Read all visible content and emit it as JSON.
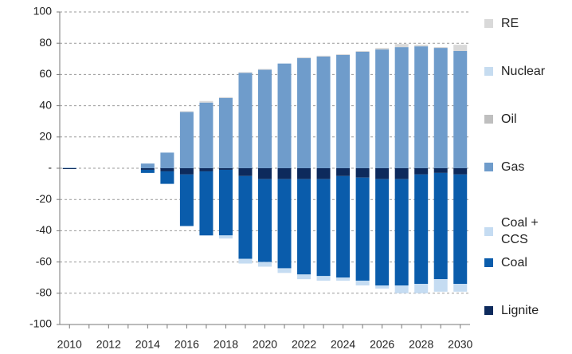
{
  "chart_data": {
    "type": "bar",
    "stacked": true,
    "categories": [
      "2010",
      null,
      "2012",
      null,
      "2014",
      null,
      "2016",
      null,
      "2018",
      null,
      "2020",
      null,
      "2022",
      null,
      "2024",
      null,
      "2026",
      null,
      "2028",
      null,
      "2030"
    ],
    "series": [
      {
        "name": "RE",
        "color": "#d9d9d9",
        "values": [
          0,
          0,
          0,
          0,
          0,
          0,
          0.5,
          1,
          0.5,
          0.5,
          0.5,
          0,
          0.5,
          0.5,
          0.5,
          0.5,
          1,
          2,
          1,
          0.5,
          4
        ]
      },
      {
        "name": "Nuclear",
        "color": "#c6dcf0",
        "values": [
          0,
          0,
          0,
          0,
          0,
          0,
          0,
          0,
          0,
          0,
          0,
          0,
          0,
          0,
          0,
          0,
          0,
          0,
          0,
          0,
          0
        ]
      },
      {
        "name": "Oil",
        "color": "#bfbfbf",
        "values": [
          0,
          0,
          0,
          0,
          0,
          0,
          0,
          0,
          0,
          0,
          0,
          0,
          0,
          0,
          0,
          0,
          0,
          0,
          0,
          0,
          0
        ]
      },
      {
        "name": "Gas",
        "color": "#6f9ccb",
        "values": [
          0.3,
          0,
          0,
          0,
          3,
          10,
          36,
          42,
          45,
          61,
          63,
          67,
          70.5,
          71.5,
          72.5,
          74.5,
          76,
          77.5,
          78,
          77,
          75
        ]
      },
      {
        "name": "Coal + CCS",
        "color": "#c5dcf2",
        "values": [
          0,
          0,
          0,
          0,
          0,
          0,
          0,
          0,
          -2,
          -3,
          -3,
          -3,
          -3,
          -3,
          -2,
          -3,
          -2,
          -5,
          -6,
          -8,
          -5
        ]
      },
      {
        "name": "Coal",
        "color": "#0a5cab",
        "values": [
          0,
          0,
          0,
          0,
          -2,
          -8,
          -33,
          -41,
          -42,
          -53,
          -53,
          -57,
          -61,
          -62,
          -65,
          -66,
          -68,
          -68,
          -70,
          -68,
          -70
        ]
      },
      {
        "name": "Lignite",
        "color": "#0d2a5c",
        "values": [
          -0.5,
          0,
          0,
          0,
          -1,
          -2,
          -4,
          -2,
          -1,
          -5,
          -7,
          -7,
          -7,
          -7,
          -5,
          -6,
          -7,
          -7,
          -4,
          -3,
          -4
        ]
      }
    ],
    "ylim": [
      -100,
      100
    ],
    "yticks": [
      -100,
      -80,
      -60,
      -40,
      -20,
      {
        "value": 0,
        "label": "-"
      },
      20,
      40,
      60,
      80,
      100
    ],
    "grid": true,
    "legend": "right"
  }
}
